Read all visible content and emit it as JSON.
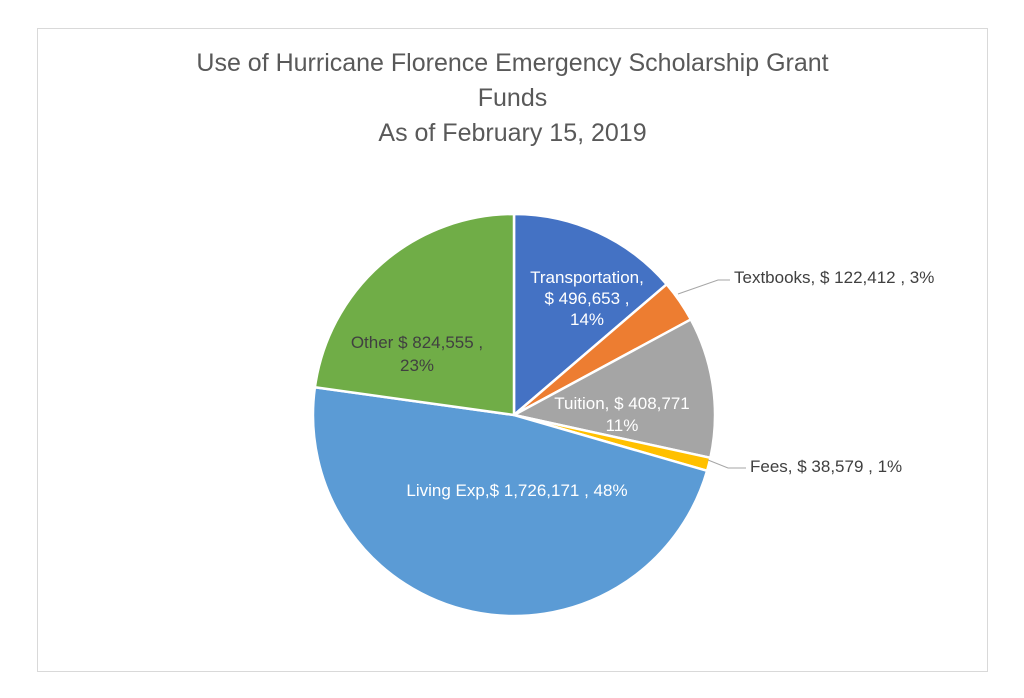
{
  "chart_data": {
    "type": "pie",
    "title_lines": [
      "Use of Hurricane Florence Emergency Scholarship Grant",
      "Funds",
      "As of February 15, 2019"
    ],
    "slices": [
      {
        "name": "Transportation",
        "value": 496653,
        "percent": 14,
        "color": "#4472c4",
        "label_lines": [
          "Transportation,",
          "$ 496,653 ,",
          "14%"
        ],
        "label_color": "#ffffff",
        "label_pos": "inside"
      },
      {
        "name": "Textbooks",
        "value": 122412,
        "percent": 3,
        "color": "#ed7d31",
        "label_lines": [
          "Textbooks, $ 122,412 , 3%"
        ],
        "label_color": "#404040",
        "label_pos": "outside"
      },
      {
        "name": "Tuition",
        "value": 408771,
        "percent": 11,
        "color": "#a5a5a5",
        "label_lines": [
          "Tuition, $ 408,771",
          "11%"
        ],
        "label_color": "#ffffff",
        "label_pos": "inside"
      },
      {
        "name": "Fees",
        "value": 38579,
        "percent": 1,
        "color": "#ffc000",
        "label_lines": [
          "Fees, $ 38,579 , 1%"
        ],
        "label_color": "#404040",
        "label_pos": "outside"
      },
      {
        "name": "Living Exp",
        "value": 1726171,
        "percent": 48,
        "color": "#5b9bd5",
        "label_lines": [
          "Living Exp,$ 1,726,171 , 48%"
        ],
        "label_color": "#ffffff",
        "label_pos": "inside"
      },
      {
        "name": "Other",
        "value": 824555,
        "percent": 23,
        "color": "#70ad47",
        "label_lines": [
          "Other $ 824,555 ,",
          "23%"
        ],
        "label_color": "#404040",
        "label_pos": "inside"
      }
    ]
  }
}
